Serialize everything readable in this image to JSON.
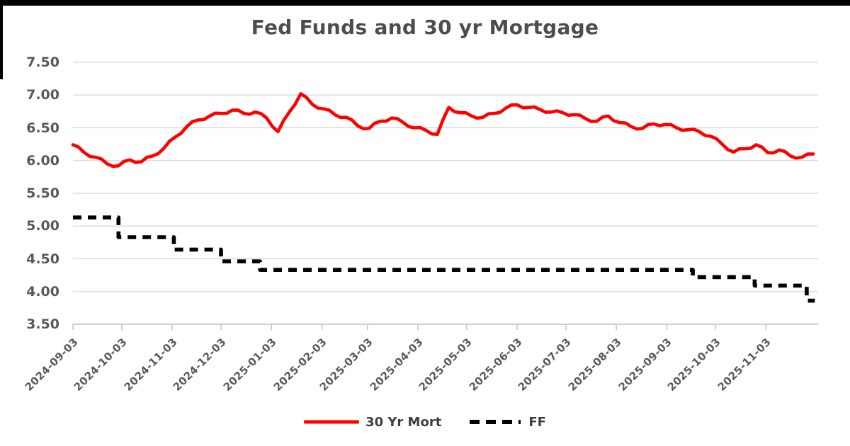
{
  "page": {
    "title": "Fed Funds and 30 yr Mortgage"
  },
  "colors": {
    "mortgage_line": "#FF0000",
    "ff_line": "#000000",
    "gridline": "#D6D6D6",
    "axis_line": "#BFBFBF",
    "axis_text": "#595959",
    "title_text": "#4D4D4D",
    "frame": "#000000",
    "background": "#FFFFFF"
  },
  "chart_data": {
    "type": "line",
    "title": "Fed Funds and 30 yr Mortgage",
    "xlabel": "",
    "ylabel": "",
    "grid": true,
    "ylim": [
      3.5,
      7.5
    ],
    "y_tick_step": 0.5,
    "y_tick_labels": [
      "7.50",
      "7.00",
      "6.50",
      "6.00",
      "5.50",
      "5.00",
      "4.50",
      "4.00",
      "3.50"
    ],
    "x_domain": [
      "2024-09-03",
      "2025-12-05"
    ],
    "x_tick_labels": [
      "2024-09-03",
      "2024-10-03",
      "2024-11-03",
      "2024-12-03",
      "2025-01-03",
      "2025-02-03",
      "2025-03-03",
      "2025-04-03",
      "2025-05-03",
      "2025-06-03",
      "2025-07-03",
      "2025-08-03",
      "2025-09-03",
      "2025-10-03",
      "2025-11-03"
    ],
    "legend": {
      "position": "bottom",
      "entries": [
        {
          "label": "30 Yr Mort",
          "color": "#FF0000",
          "style": "solid"
        },
        {
          "label": "FF",
          "color": "#000000",
          "style": "dashed"
        }
      ]
    },
    "series": [
      {
        "name": "30 Yr Mort",
        "style": "solid",
        "color": "#FF0000",
        "dates": [
          "2024-09-03",
          "2024-09-10",
          "2024-09-17",
          "2024-09-24",
          "2024-10-01",
          "2024-10-08",
          "2024-10-15",
          "2024-10-22",
          "2024-10-29",
          "2024-11-05",
          "2024-11-12",
          "2024-11-19",
          "2024-11-26",
          "2024-12-03",
          "2024-12-10",
          "2024-12-17",
          "2024-12-24",
          "2024-12-31",
          "2025-01-07",
          "2025-01-14",
          "2025-01-21",
          "2025-01-28",
          "2025-02-04",
          "2025-02-11",
          "2025-02-18",
          "2025-02-25",
          "2025-03-04",
          "2025-03-11",
          "2025-03-18",
          "2025-03-25",
          "2025-04-01",
          "2025-04-08",
          "2025-04-15",
          "2025-04-22",
          "2025-04-29",
          "2025-05-06",
          "2025-05-13",
          "2025-05-20",
          "2025-05-27",
          "2025-06-03",
          "2025-06-10",
          "2025-06-17",
          "2025-06-24",
          "2025-07-01",
          "2025-07-08",
          "2025-07-15",
          "2025-07-22",
          "2025-07-29",
          "2025-08-05",
          "2025-08-12",
          "2025-08-19",
          "2025-08-26",
          "2025-09-02",
          "2025-09-09",
          "2025-09-16",
          "2025-09-23",
          "2025-09-30",
          "2025-10-07",
          "2025-10-14",
          "2025-10-21",
          "2025-10-28",
          "2025-11-04",
          "2025-11-11",
          "2025-11-18",
          "2025-11-25",
          "2025-12-02"
        ],
        "values": [
          6.24,
          6.12,
          6.05,
          5.95,
          5.92,
          6.01,
          5.98,
          6.07,
          6.19,
          6.36,
          6.52,
          6.62,
          6.68,
          6.72,
          6.77,
          6.72,
          6.74,
          6.65,
          6.44,
          6.74,
          7.02,
          6.86,
          6.79,
          6.7,
          6.66,
          6.53,
          6.49,
          6.6,
          6.65,
          6.58,
          6.5,
          6.46,
          6.4,
          6.81,
          6.73,
          6.68,
          6.66,
          6.72,
          6.8,
          6.85,
          6.81,
          6.78,
          6.74,
          6.73,
          6.7,
          6.64,
          6.6,
          6.68,
          6.58,
          6.52,
          6.49,
          6.56,
          6.55,
          6.5,
          6.47,
          6.44,
          6.37,
          6.25,
          6.13,
          6.18,
          6.24,
          6.12,
          6.16,
          6.07,
          6.05,
          6.1
        ]
      },
      {
        "name": "FF",
        "style": "dashed",
        "color": "#000000",
        "step_end": "2025-12-03",
        "steps": [
          {
            "from": "2024-09-03",
            "value": 5.13
          },
          {
            "from": "2024-10-01",
            "value": 4.83
          },
          {
            "from": "2024-11-04",
            "value": 4.64
          },
          {
            "from": "2024-12-03",
            "value": 4.46
          },
          {
            "from": "2024-12-27",
            "value": 4.33
          },
          {
            "from": "2025-09-19",
            "value": 4.22
          },
          {
            "from": "2025-10-27",
            "value": 4.09
          },
          {
            "from": "2025-11-28",
            "value": 3.86
          }
        ]
      }
    ]
  }
}
